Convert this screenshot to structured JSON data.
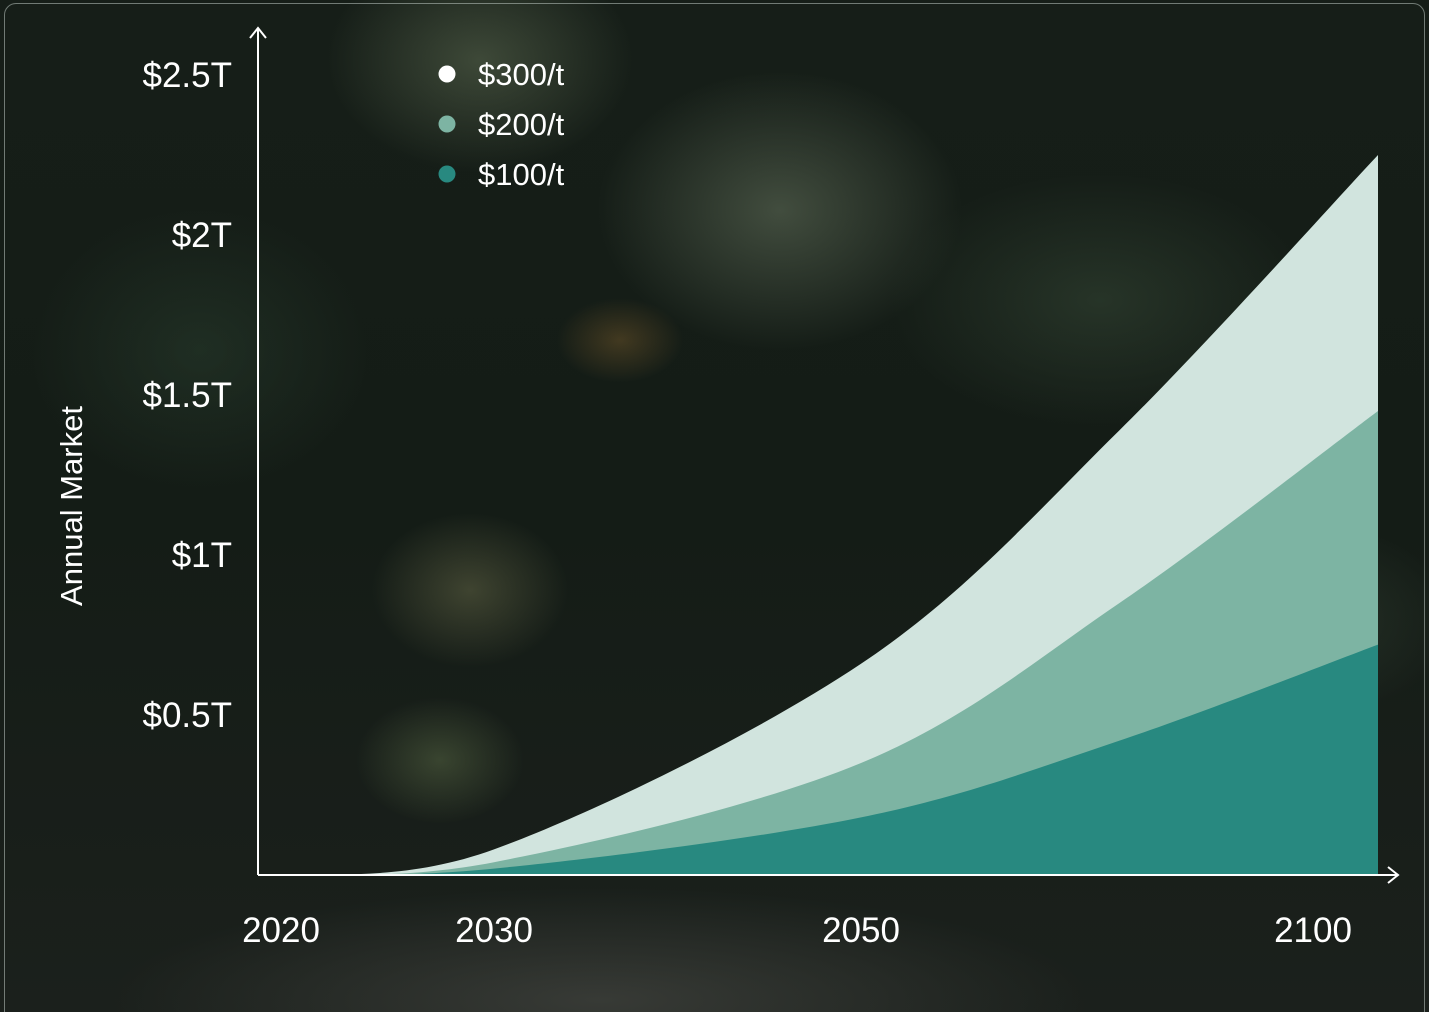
{
  "chart_data": {
    "type": "area",
    "title": "",
    "xlabel": "",
    "ylabel": "Annual Market",
    "x_ticks": [
      {
        "value": 2020,
        "label": "2020"
      },
      {
        "value": 2030,
        "label": "2030"
      },
      {
        "value": 2050,
        "label": "2050"
      },
      {
        "value": 2100,
        "label": "2100"
      }
    ],
    "y_ticks": [
      {
        "value": 0.5,
        "label": "$0.5T"
      },
      {
        "value": 1.0,
        "label": "$1T"
      },
      {
        "value": 1.5,
        "label": "$1.5T"
      },
      {
        "value": 2.0,
        "label": "$2T"
      },
      {
        "value": 2.5,
        "label": "$2.5T"
      }
    ],
    "y_unit": "trillion USD",
    "ylim": [
      0,
      2.5
    ],
    "grid": false,
    "legend_position": "top-left",
    "series": [
      {
        "name": "$300/t",
        "color": "#d1e4de",
        "points": [
          [
            2020,
            0.0
          ],
          [
            2030,
            0.08
          ],
          [
            2050,
            0.66
          ],
          [
            2075,
            1.39
          ],
          [
            2100,
            2.25
          ]
        ]
      },
      {
        "name": "$200/t",
        "color": "#7db4a3",
        "points": [
          [
            2020,
            0.0
          ],
          [
            2030,
            0.04
          ],
          [
            2050,
            0.35
          ],
          [
            2075,
            0.85
          ],
          [
            2100,
            1.45
          ]
        ]
      },
      {
        "name": "$100/t",
        "color": "#288980",
        "points": [
          [
            2020,
            0.0
          ],
          [
            2030,
            0.02
          ],
          [
            2050,
            0.18
          ],
          [
            2075,
            0.42
          ],
          [
            2100,
            0.72
          ]
        ]
      }
    ]
  }
}
